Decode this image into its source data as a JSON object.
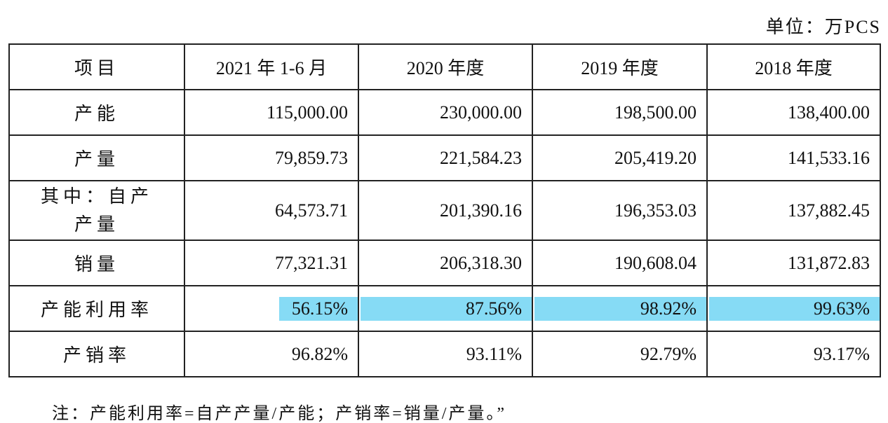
{
  "unit": "单位：万PCS",
  "table": {
    "header": [
      "项目",
      "2021 年 1-6 月",
      "2020 年度",
      "2019 年度",
      "2018 年度"
    ],
    "rows": [
      [
        "产能",
        "115,000.00",
        "230,000.00",
        "198,500.00",
        "138,400.00"
      ],
      [
        "产量",
        "79,859.73",
        "221,584.23",
        "205,419.20",
        "141,533.16"
      ],
      [
        "其中：自产产量",
        "64,573.71",
        "201,390.16",
        "196,353.03",
        "137,882.45"
      ],
      [
        "销量",
        "77,321.31",
        "206,318.30",
        "190,608.04",
        "131,872.83"
      ],
      [
        "产能利用率",
        "56.15%",
        "87.56%",
        "98.92%",
        "99.63%"
      ],
      [
        "产销率",
        "96.82%",
        "93.11%",
        "92.79%",
        "93.17%"
      ]
    ]
  },
  "note": "注：产能利用率=自产产量/产能；产销率=销量/产量。”"
}
